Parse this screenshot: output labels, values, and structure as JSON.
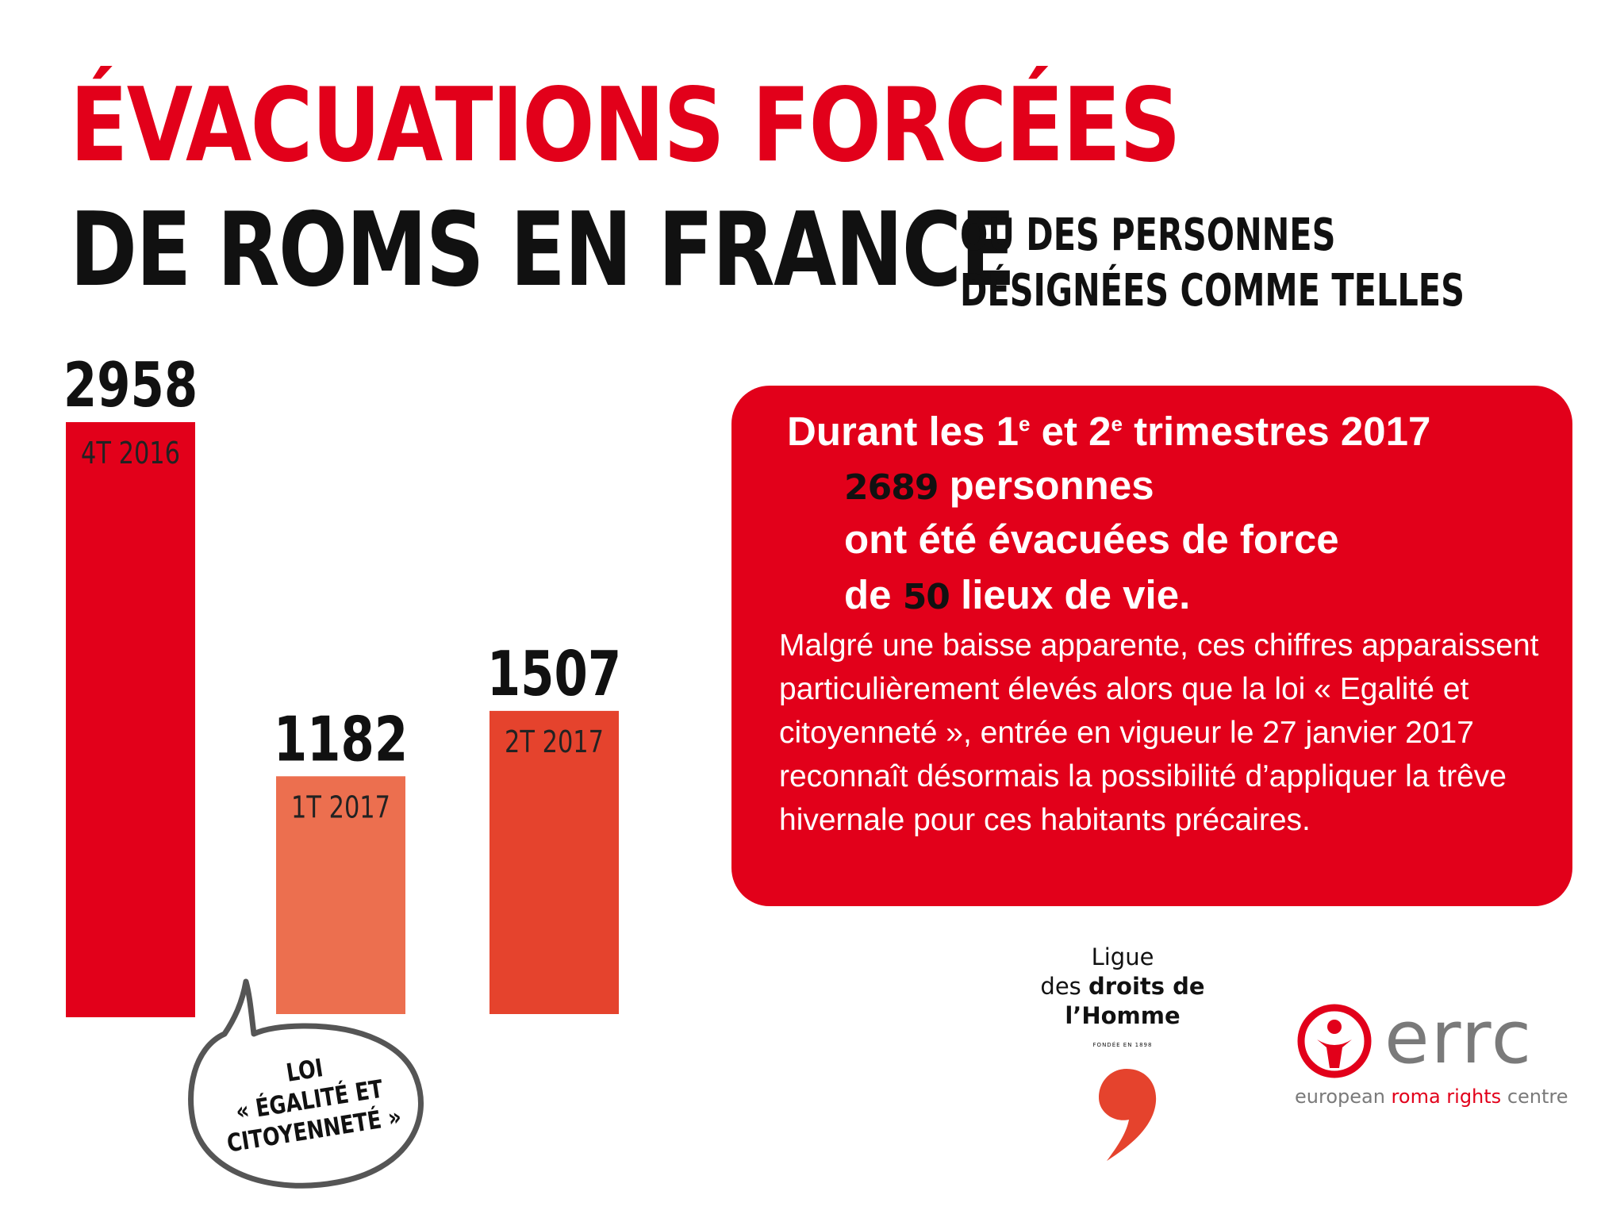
{
  "title": {
    "line1": "ÉVACUATIONS FORCÉES",
    "line2": "DE ROMS EN FRANCE",
    "subtitle_line1": "OU DES PERSONNES",
    "subtitle_line2": "DÉSIGNÉES COMME TELLES"
  },
  "colors": {
    "brand_red": "#e2001a",
    "bar_4t2016": "#e2001a",
    "bar_1t2017": "#ec6f4f",
    "bar_2t2017": "#e5432d"
  },
  "chart_data": {
    "type": "bar",
    "categories": [
      "4T 2016",
      "1T 2017",
      "2T 2017"
    ],
    "values": [
      2958,
      1182,
      1507
    ],
    "value_labels": [
      "2958",
      "1182",
      "1507"
    ],
    "bar_colors": [
      "#e2001a",
      "#ec6f4f",
      "#e5432d"
    ],
    "title": "",
    "xlabel": "",
    "ylabel": "",
    "grid": false
  },
  "info_box": {
    "title_part1": "Durant les 1",
    "sup1": "e",
    "title_part2": " et 2",
    "sup2": "e",
    "title_part3": " trimestres 2017",
    "people_count": "2689",
    "people_label": " personnes",
    "line2": "ont été évacuées de force",
    "line3_prefix": "de ",
    "places_count": "50",
    "line3_suffix": " lieux de vie.",
    "body": "Malgré une baisse apparente, ces chiffres apparaissent particulièrement élevés alors que la loi « Egalité et citoyenneté », entrée en vigueur le 27 janvier 2017 reconnaît désormais la possibilité d’appliquer la trêve hivernale pour ces habitants précaires."
  },
  "bubble": {
    "line1": "LOI",
    "line2": "« ÉGALITÉ ET",
    "line3": "CITOYENNETÉ »"
  },
  "ldh_logo": {
    "line1": "Ligue",
    "line2_prefix": "des ",
    "line2_bold": "droits de",
    "line3": "l’Homme",
    "tagline": "FONDÉE EN 1898",
    "icon": "comma-mark-icon"
  },
  "errc_logo": {
    "wordmark": "errc",
    "tagline_part1": "european ",
    "tagline_red": "roma rights",
    "tagline_part2": " centre",
    "icon": "person-circle-icon"
  }
}
